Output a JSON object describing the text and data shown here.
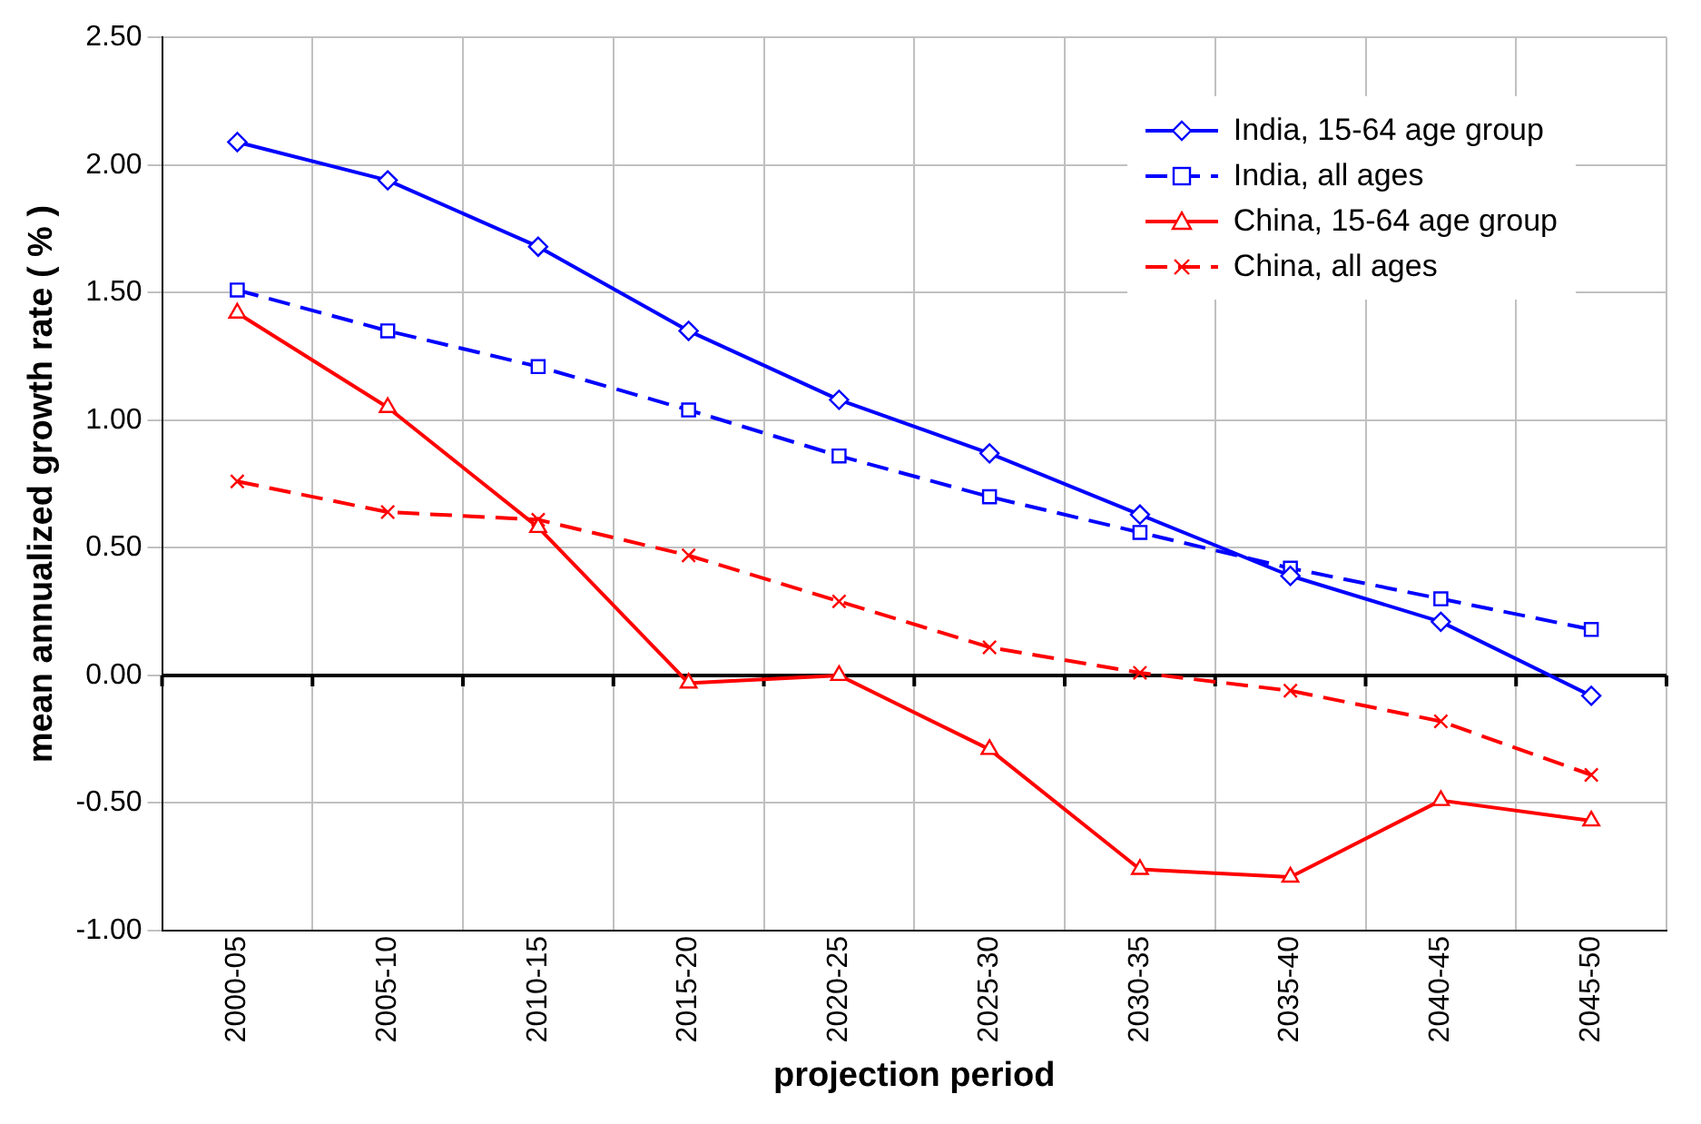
{
  "chart_data": {
    "type": "line",
    "xlabel": "projection period",
    "ylabel": "mean annualized growth rate ( % )",
    "categories": [
      "2000-05",
      "2005-10",
      "2010-15",
      "2015-20",
      "2020-25",
      "2025-30",
      "2030-35",
      "2035-40",
      "2040-45",
      "2045-50"
    ],
    "series": [
      {
        "name": "India, 15-64 age group",
        "color": "#0000ff",
        "marker": "diamond",
        "line_style": "solid",
        "values": [
          2.09,
          1.94,
          1.68,
          1.35,
          1.08,
          0.87,
          0.63,
          0.39,
          0.21,
          -0.08
        ]
      },
      {
        "name": "India, all ages",
        "color": "#0000ff",
        "marker": "square",
        "line_style": "dashed",
        "values": [
          1.51,
          1.35,
          1.21,
          1.04,
          0.86,
          0.7,
          0.56,
          0.42,
          0.3,
          0.18
        ]
      },
      {
        "name": "China, 15-64 age group",
        "color": "#ff0000",
        "marker": "triangle",
        "line_style": "solid",
        "values": [
          1.42,
          1.05,
          0.58,
          -0.03,
          0.0,
          -0.29,
          -0.76,
          -0.79,
          -0.49,
          -0.57
        ]
      },
      {
        "name": "China, all ages",
        "color": "#ff0000",
        "marker": "cross",
        "line_style": "dashed",
        "values": [
          0.76,
          0.64,
          0.61,
          0.47,
          0.29,
          0.11,
          0.01,
          -0.06,
          -0.18,
          -0.39
        ]
      }
    ],
    "ylim": [
      -1.0,
      2.5
    ],
    "yticks": [
      {
        "value": -1,
        "label": "-1.00"
      },
      {
        "value": -0.5,
        "label": "-0.50"
      },
      {
        "value": 0,
        "label": "0.00"
      },
      {
        "value": 0.5,
        "label": "0.50"
      },
      {
        "value": 1,
        "label": "1.00"
      },
      {
        "value": 1.5,
        "label": "1.50"
      },
      {
        "value": 2,
        "label": "2.00"
      },
      {
        "value": 2.5,
        "label": "2.50"
      }
    ],
    "ref_lines": [
      {
        "axis": "y",
        "value": 0,
        "color": "#000000"
      }
    ],
    "grid": true,
    "legend": "top right"
  }
}
